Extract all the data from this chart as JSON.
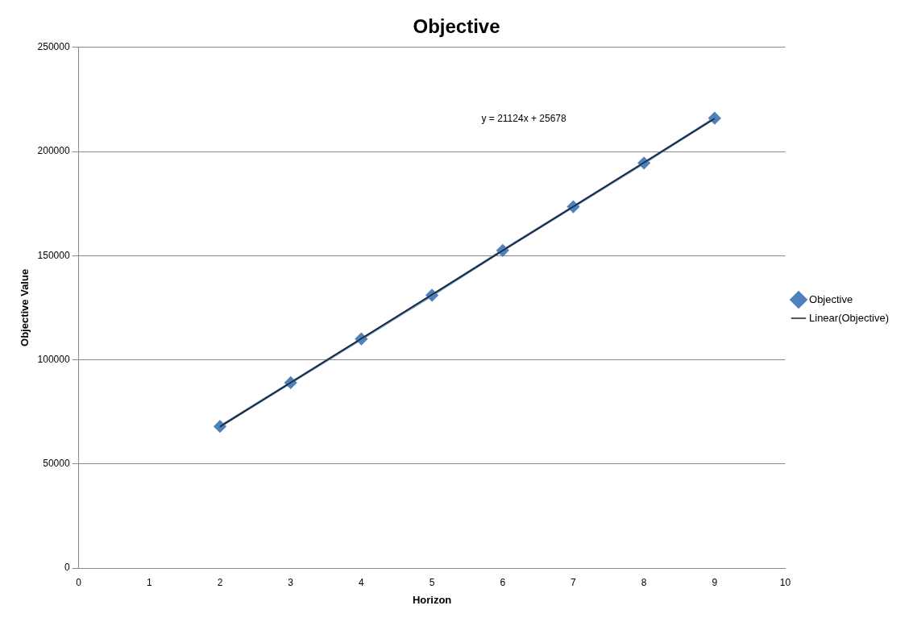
{
  "chart_data": {
    "type": "line",
    "title": "Objective",
    "xlabel": "Horizon",
    "ylabel": "Objective Value",
    "xlim": [
      0,
      10
    ],
    "xticks": [
      0,
      1,
      2,
      3,
      4,
      5,
      6,
      7,
      8,
      9,
      10
    ],
    "ylim": [
      0,
      250000
    ],
    "yticks": [
      0,
      50000,
      100000,
      150000,
      200000,
      250000
    ],
    "grid": "y",
    "legend": "right",
    "series": [
      {
        "name": "Objective",
        "color": "#4f81bd",
        "marker": "diamond",
        "x": [
          2,
          3,
          4,
          5,
          6,
          7,
          8,
          9
        ],
        "values": [
          68000,
          89000,
          110000,
          131000,
          152500,
          173500,
          194500,
          216000
        ]
      },
      {
        "name": "Linear(Objective)",
        "color": "#1f1f1f",
        "marker": "none",
        "x": [
          2,
          9
        ],
        "values": [
          67900,
          215800
        ]
      }
    ],
    "annotations": [
      "y = 21124x + 25678"
    ]
  }
}
